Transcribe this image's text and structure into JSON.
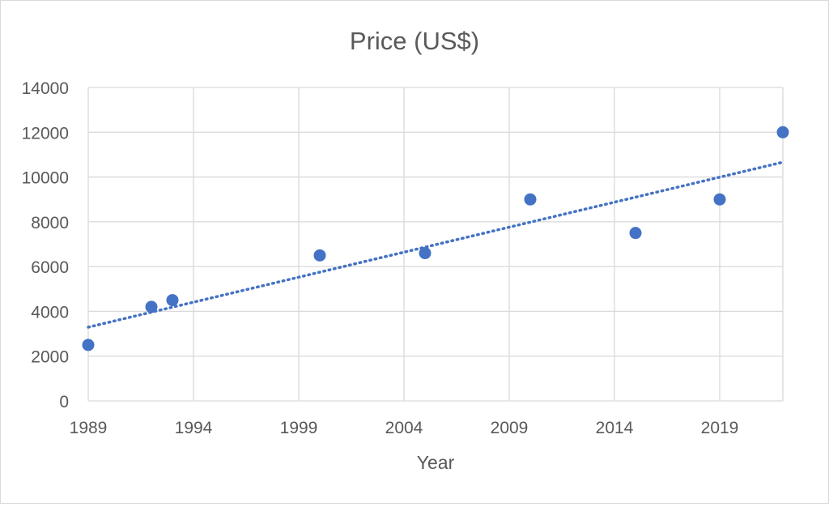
{
  "chart_data": {
    "type": "scatter",
    "title": "Price (US$)",
    "xlabel": "Year",
    "ylabel": "",
    "xlim": [
      1989,
      2022
    ],
    "ylim": [
      0,
      14000
    ],
    "x_ticks": [
      1989,
      1994,
      1999,
      2004,
      2009,
      2014,
      2019
    ],
    "y_ticks": [
      0,
      2000,
      4000,
      6000,
      8000,
      10000,
      12000,
      14000
    ],
    "grid": true,
    "trendline": "linear (dotted)",
    "series": [
      {
        "x": [
          1989,
          1992,
          1993,
          2000,
          2005,
          2010,
          2015,
          2019,
          2022
        ],
        "y": [
          2500,
          4200,
          4500,
          6500,
          6600,
          9000,
          7500,
          9000,
          12000
        ]
      }
    ],
    "colors": {
      "marker": "#4472C4",
      "trendline": "#4472C4",
      "grid": "#d9d9d9",
      "text": "#595959"
    }
  }
}
